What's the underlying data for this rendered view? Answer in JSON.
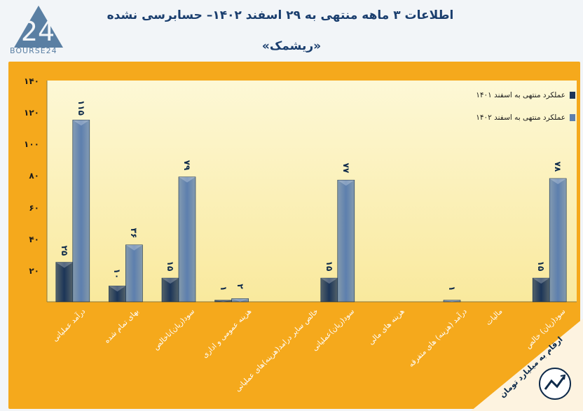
{
  "header": {
    "title": "اطلاعات ۳ ماهه منتهی به ۲۹ اسفند ۱۴۰۲– حسابرسی نشده",
    "subtitle": "«ریشمک»",
    "logo_text": "BOURSE24",
    "logo_mark": "24"
  },
  "unit_note": "ارقام به میلیارد تومان",
  "colors": {
    "frame": "#f5a91c",
    "series_1401": "#1c3558",
    "series_1402": "#5d7fae",
    "title": "#1a3e6e"
  },
  "chart_data": {
    "type": "bar",
    "title": "اطلاعات ۳ ماهه منتهی به ۲۹ اسفند ۱۴۰۲– حسابرسی نشده",
    "xlabel": "",
    "ylabel": "",
    "ylim": [
      0,
      140
    ],
    "yticks": [
      "۱۴۰",
      "۱۲۰",
      "۱۰۰",
      "۸۰",
      "۶۰",
      "۴۰",
      "۲۰"
    ],
    "ytick_values": [
      140,
      120,
      100,
      80,
      60,
      40,
      20
    ],
    "grid": false,
    "legend_position": "top-right",
    "categories": [
      "درآمد عملیاتی",
      "بهای تمام شده",
      "سود(زیان)ناخالص",
      "هزینه عمومی و اداری",
      "خالص سایر درامد(هزینه)های عملیاتی",
      "سود(زیان)عملیاتی",
      "هزینه های مالی",
      "درآمد (هزینه) های متفرقه",
      "مالیات",
      "سود(زیان) خالص"
    ],
    "series": [
      {
        "name": "عملکرد منتهی به اسفند ۱۴۰۱",
        "values": [
          25,
          10,
          15,
          1,
          0,
          15,
          0,
          0,
          0,
          15
        ],
        "labels": [
          "۲۵",
          "۱۰",
          "۱۵",
          "۱",
          "",
          "۱۵",
          "",
          "",
          "",
          "۱۵"
        ]
      },
      {
        "name": "عملکرد منتهی به اسفند ۱۴۰۲",
        "values": [
          115,
          36,
          79,
          2,
          0,
          77,
          0,
          1,
          0,
          78
        ],
        "labels": [
          "۱۱۵",
          "۳۶",
          "۷۹",
          "۲",
          "",
          "۷۷",
          "",
          "۱",
          "",
          "۷۸"
        ]
      }
    ]
  }
}
